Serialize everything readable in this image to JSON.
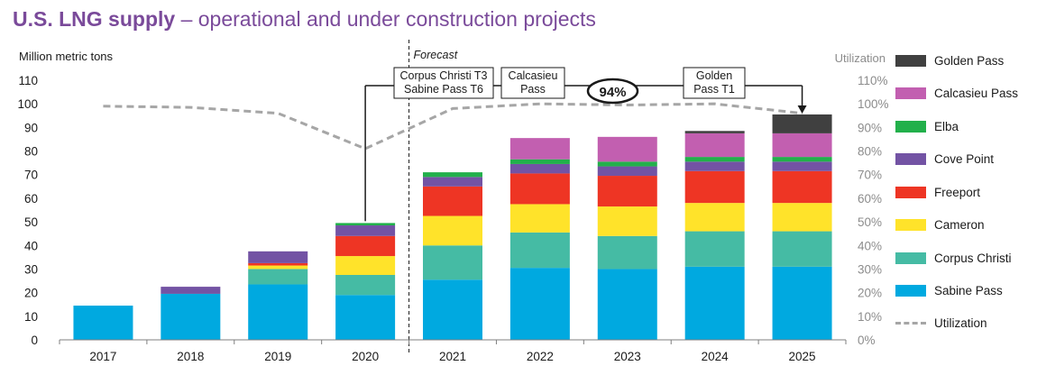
{
  "title": {
    "bold": "U.S. LNG supply",
    "rest": " – operational and under construction projects"
  },
  "chart_data": {
    "type": "bar",
    "stacked": true,
    "categories": [
      "2017",
      "2018",
      "2019",
      "2020",
      "2021",
      "2022",
      "2023",
      "2024",
      "2025"
    ],
    "ylabel": "Million metric tons",
    "y2label": "Utilization",
    "ylim": [
      0,
      110
    ],
    "yticks": [
      0,
      10,
      20,
      30,
      40,
      50,
      60,
      70,
      80,
      90,
      100,
      110
    ],
    "y2lim": [
      0,
      110
    ],
    "y2ticks": [
      "0%",
      "10%",
      "20%",
      "30%",
      "40%",
      "50%",
      "60%",
      "70%",
      "80%",
      "90%",
      "100%",
      "110%"
    ],
    "forecast_label": "Forecast",
    "forecast_starts_after": "2020",
    "series": [
      {
        "name": "Sabine Pass",
        "color": "#00a9e0",
        "values": [
          14.5,
          19.5,
          23.5,
          19,
          25.5,
          30.5,
          30,
          31,
          31
        ]
      },
      {
        "name": "Corpus Christi",
        "color": "#45bba4",
        "values": [
          0,
          0,
          6.5,
          8.5,
          14.5,
          15,
          14,
          15,
          15
        ]
      },
      {
        "name": "Cameron",
        "color": "#ffe32a",
        "values": [
          0,
          0,
          1.5,
          8,
          12.5,
          12,
          12.5,
          12,
          12
        ]
      },
      {
        "name": "Freeport",
        "color": "#ee3524",
        "values": [
          0,
          0,
          1,
          8.5,
          12.5,
          13,
          13,
          13.5,
          13.5
        ]
      },
      {
        "name": "Cove Point",
        "color": "#7353a4",
        "values": [
          0,
          3,
          5,
          4.5,
          4,
          4,
          4,
          4,
          4
        ]
      },
      {
        "name": "Elba",
        "color": "#22b04b",
        "values": [
          0,
          0,
          0,
          1,
          2,
          2,
          2,
          2,
          2
        ]
      },
      {
        "name": "Calcasieu Pass",
        "color": "#c25fb0",
        "values": [
          0,
          0,
          0,
          0,
          0,
          9,
          10.5,
          10,
          10
        ]
      },
      {
        "name": "Golden Pass",
        "color": "#404040",
        "values": [
          0,
          0,
          0,
          0,
          0,
          0,
          0,
          1,
          8
        ]
      }
    ],
    "utilization": {
      "name": "Utilization",
      "color": "#a6a6a6",
      "values": [
        99,
        98.5,
        96,
        81,
        98,
        100,
        99.5,
        100,
        96
      ]
    },
    "annotations": [
      {
        "lines": [
          "Corpus Christi T3",
          "Sabine Pass T6"
        ],
        "target": "2020"
      },
      {
        "lines": [
          "Calcasieu",
          "Pass"
        ]
      },
      {
        "lines": [
          "94%"
        ],
        "style": "ellipse"
      },
      {
        "lines": [
          "Golden",
          "Pass T1"
        ],
        "target": "2025"
      }
    ]
  }
}
